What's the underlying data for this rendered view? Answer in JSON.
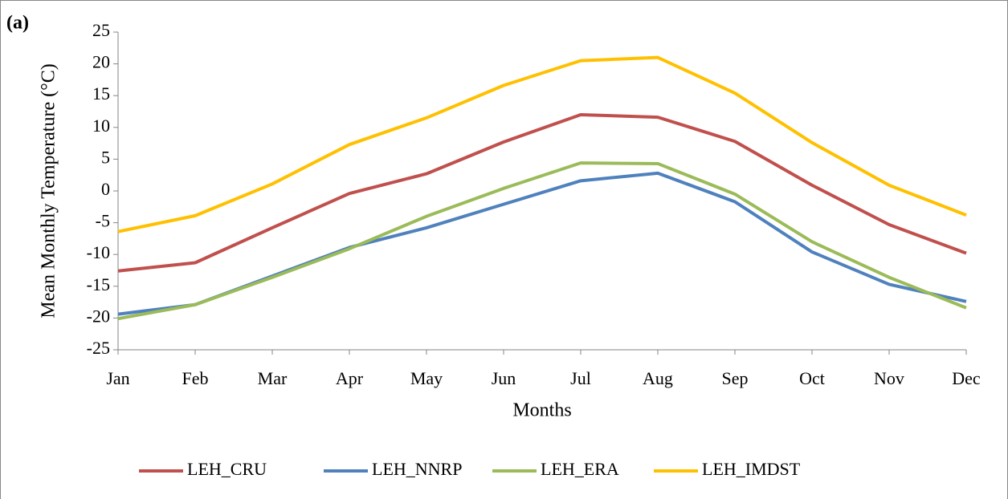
{
  "chart_data": {
    "type": "line",
    "panel_label": "(a)",
    "y_label": "Mean Monthly Temperature (°C)",
    "x_label": "Months",
    "categories": [
      "Jan",
      "Feb",
      "Mar",
      "Apr",
      "May",
      "Jun",
      "Jul",
      "Aug",
      "Sep",
      "Oct",
      "Nov",
      "Dec"
    ],
    "series": [
      {
        "name": "LEH_CRU",
        "color": "#c0504d",
        "values": [
          -12.6,
          -11.3,
          -5.8,
          -0.4,
          2.7,
          7.7,
          12.0,
          11.6,
          7.8,
          0.9,
          -5.3,
          -9.8
        ]
      },
      {
        "name": "LEH_NNRP",
        "color": "#4f81bd",
        "values": [
          -19.4,
          -17.9,
          -13.4,
          -8.9,
          -5.8,
          -2.1,
          1.6,
          2.8,
          -1.7,
          -9.6,
          -14.7,
          -17.4
        ]
      },
      {
        "name": "LEH_ERA",
        "color": "#9bbb59",
        "values": [
          -20.1,
          -17.9,
          -13.6,
          -9.1,
          -4.0,
          0.4,
          4.4,
          4.3,
          -0.5,
          -8.0,
          -13.6,
          -18.4
        ]
      },
      {
        "name": "LEH_IMDST",
        "color": "#ffc000",
        "values": [
          -6.4,
          -3.9,
          1.1,
          7.3,
          11.5,
          16.6,
          20.5,
          21.0,
          15.4,
          7.6,
          0.9,
          -3.8
        ]
      }
    ],
    "ylim": [
      -25,
      25
    ],
    "yticks": [
      -25,
      -20,
      -15,
      -10,
      -5,
      0,
      5,
      10,
      15,
      20,
      25
    ],
    "grid": false,
    "legend": "bottom"
  }
}
